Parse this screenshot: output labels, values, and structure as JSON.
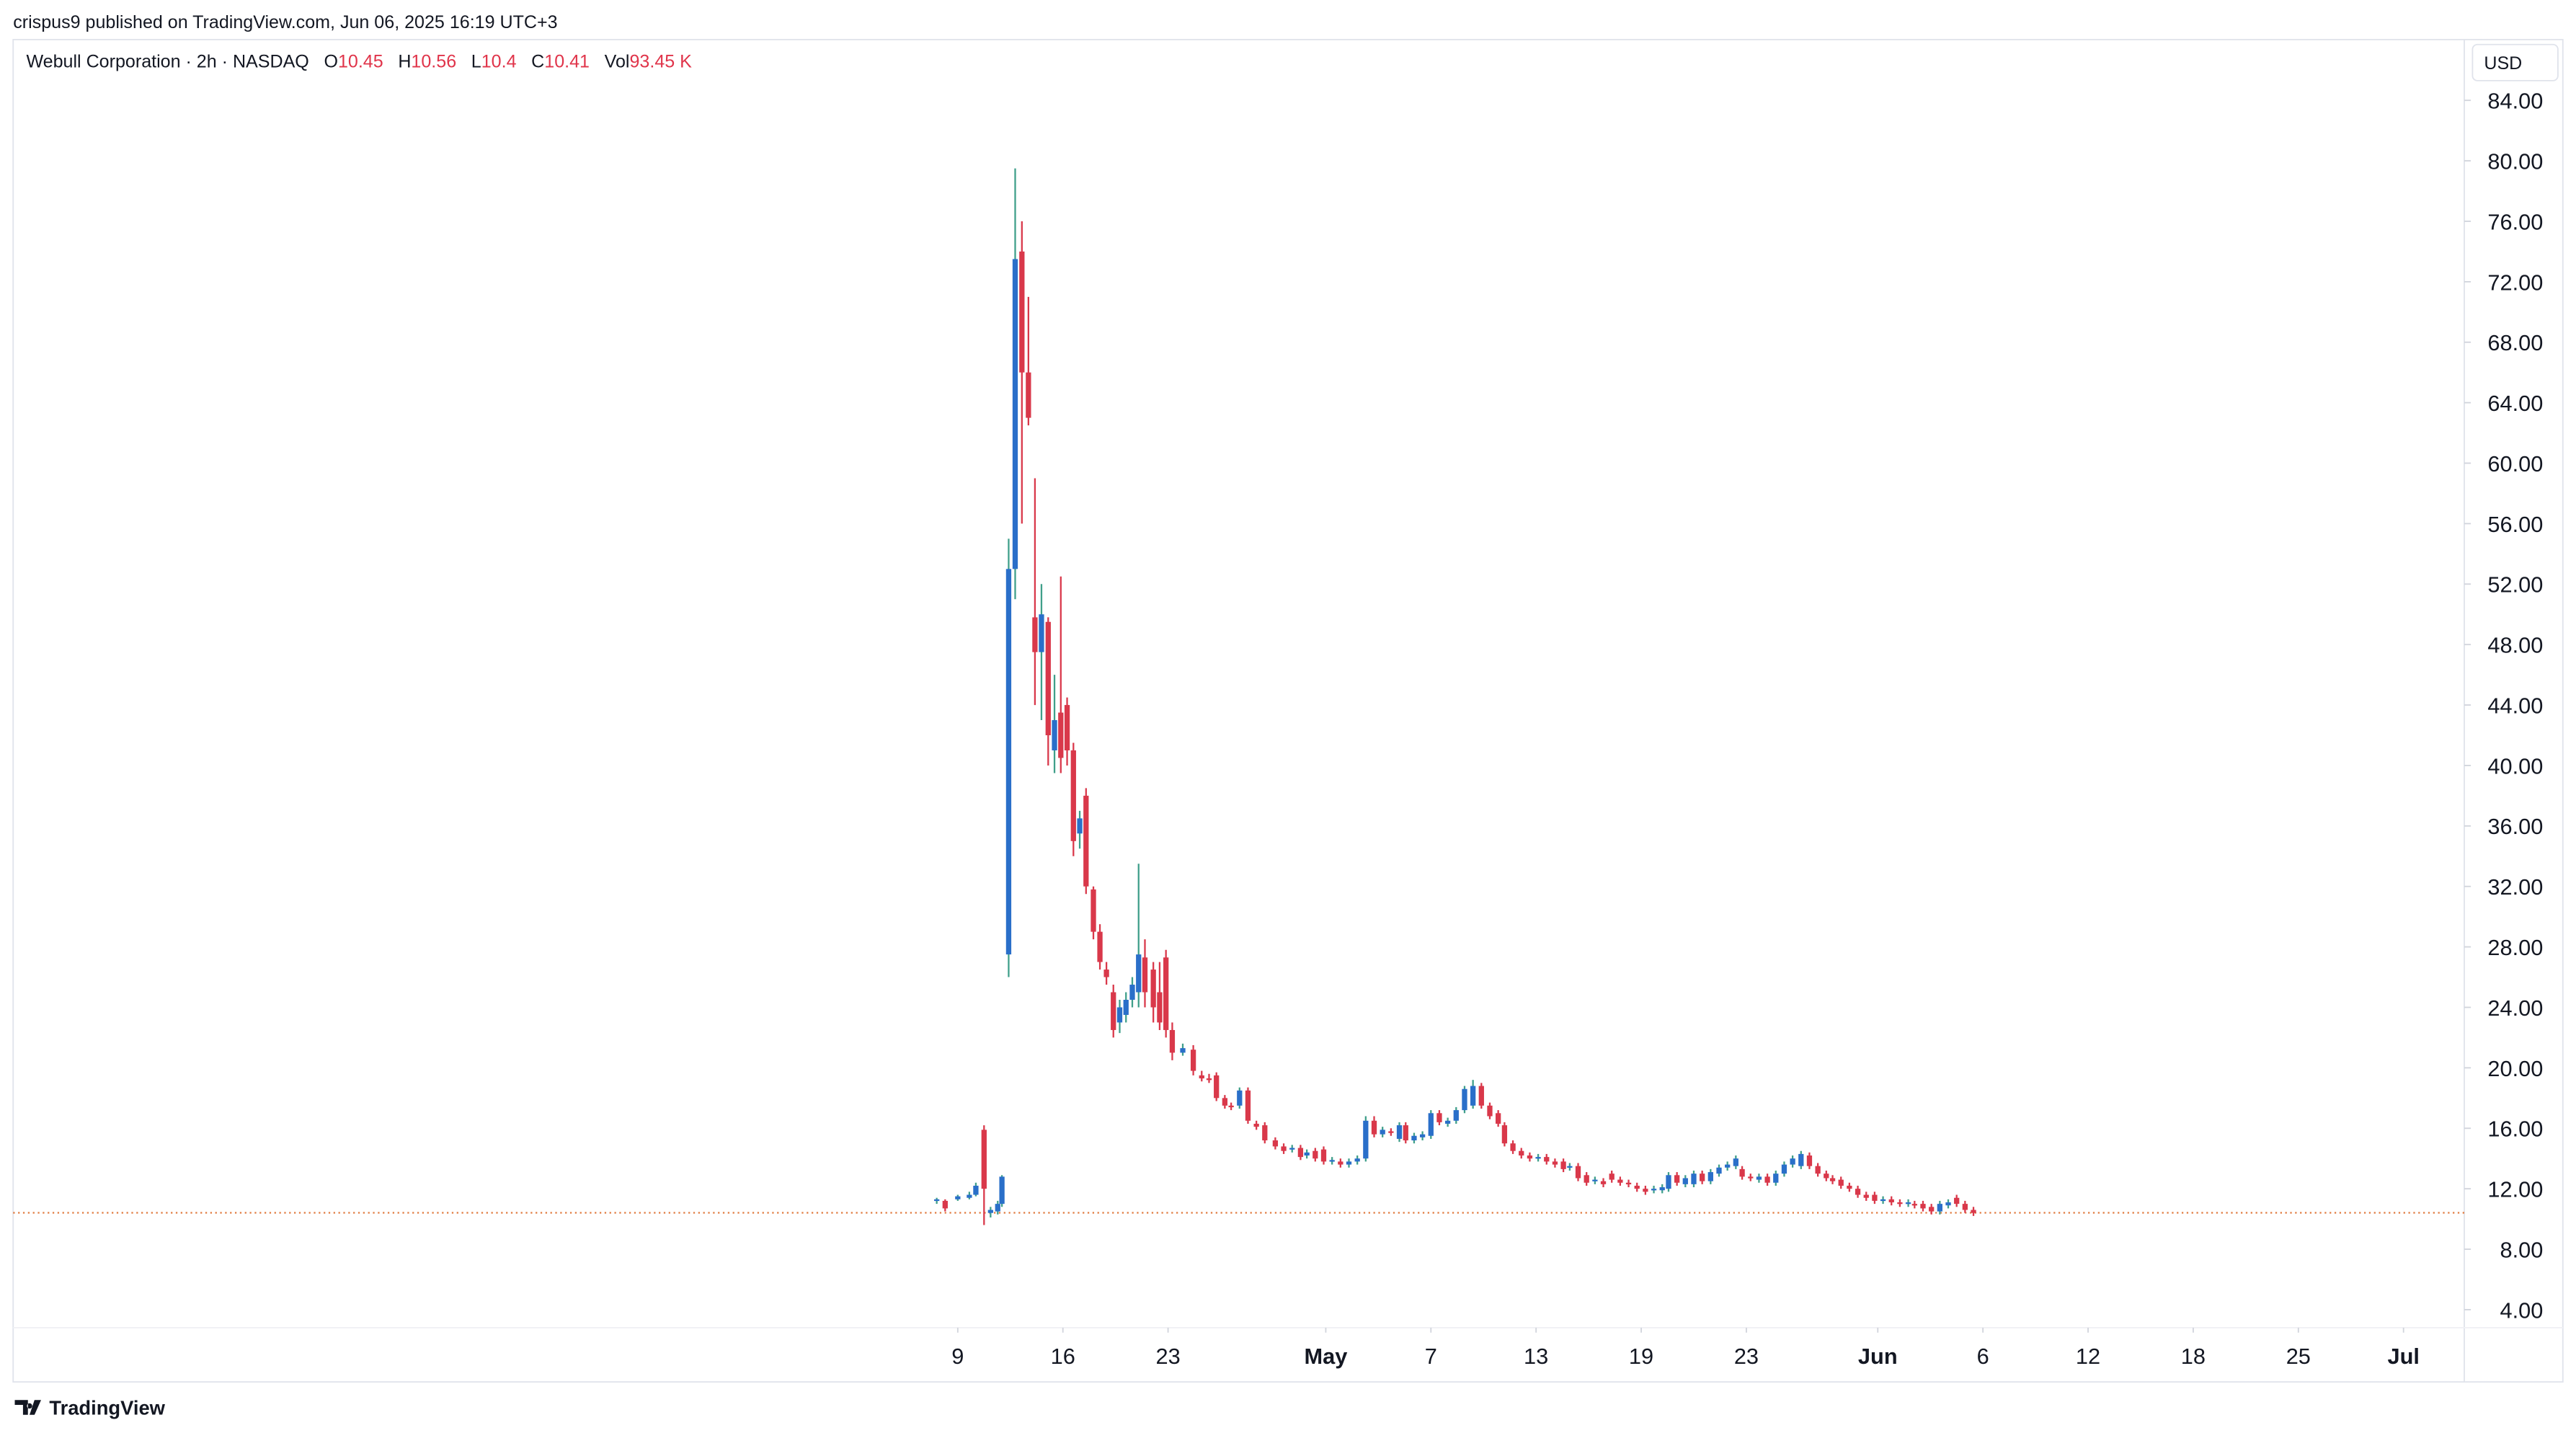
{
  "header": {
    "published": "crispus9 published on TradingView.com, Jun 06, 2025 16:19 UTC+3",
    "brand": "TradingView"
  },
  "chart_data": {
    "type": "candlestick",
    "title": "Webull Corporation · 2h · NASDAQ",
    "currency": "USD",
    "legend": {
      "open": {
        "label": "O",
        "value": 10.45
      },
      "high": {
        "label": "H",
        "value": 10.56
      },
      "low": {
        "label": "L",
        "value": 10.4
      },
      "close": {
        "label": "C",
        "value": 10.41
      },
      "volume": {
        "label": "Vol",
        "value": 93450,
        "value_label": "93.45 K"
      }
    },
    "up_color": "#2a6fc9",
    "up_wick": "#3f9f8a",
    "down_color": "#d9384a",
    "price_line_color": "#e07a3f",
    "xlim": [
      -44.92,
      71.64
    ],
    "ylim": [
      -0.67,
      88.02
    ],
    "xticks": [
      {
        "value": 0,
        "label": "9"
      },
      {
        "value": 5,
        "label": "16"
      },
      {
        "value": 10,
        "label": "23"
      },
      {
        "value": 17.5,
        "label": "May"
      },
      {
        "value": 22.5,
        "label": "7"
      },
      {
        "value": 27.5,
        "label": "13"
      },
      {
        "value": 32.5,
        "label": "19"
      },
      {
        "value": 37.5,
        "label": "23"
      },
      {
        "value": 43.75,
        "label": "Jun"
      },
      {
        "value": 48.75,
        "label": "6"
      },
      {
        "value": 53.75,
        "label": "12"
      },
      {
        "value": 58.75,
        "label": "18"
      },
      {
        "value": 63.75,
        "label": "25"
      },
      {
        "value": 68.75,
        "label": "Jul"
      }
    ],
    "yticks": [
      {
        "value": 4,
        "label": "4.00"
      },
      {
        "value": 8,
        "label": "8.00"
      },
      {
        "value": 12,
        "label": "12.00"
      },
      {
        "value": 16,
        "label": "16.00"
      },
      {
        "value": 20,
        "label": "20.00"
      },
      {
        "value": 24,
        "label": "24.00"
      },
      {
        "value": 28,
        "label": "28.00"
      },
      {
        "value": 32,
        "label": "32.00"
      },
      {
        "value": 36,
        "label": "36.00"
      },
      {
        "value": 40,
        "label": "40.00"
      },
      {
        "value": 44,
        "label": "44.00"
      },
      {
        "value": 48,
        "label": "48.00"
      },
      {
        "value": 52,
        "label": "52.00"
      },
      {
        "value": 56,
        "label": "56.00"
      },
      {
        "value": 60,
        "label": "60.00"
      },
      {
        "value": 64,
        "label": "64.00"
      },
      {
        "value": 68,
        "label": "68.00"
      },
      {
        "value": 72,
        "label": "72.00"
      },
      {
        "value": 76,
        "label": "76.00"
      },
      {
        "value": 80,
        "label": "80.00"
      },
      {
        "value": 84,
        "label": "84.00"
      }
    ],
    "candles": [
      {
        "x": -1.0,
        "open": 11.2,
        "high": 11.4,
        "low": 11.0,
        "close": 11.3
      },
      {
        "x": -0.6,
        "open": 11.2,
        "high": 11.3,
        "low": 10.5,
        "close": 10.7
      },
      {
        "x": 0,
        "open": 11.3,
        "high": 11.6,
        "low": 11.2,
        "close": 11.5
      },
      {
        "x": 0.55,
        "open": 11.4,
        "high": 11.8,
        "low": 11.3,
        "close": 11.6
      },
      {
        "x": 0.86,
        "open": 11.6,
        "high": 12.4,
        "low": 11.5,
        "close": 12.2
      },
      {
        "x": 1.25,
        "open": 15.9,
        "high": 16.2,
        "low": 9.6,
        "close": 12.0
      },
      {
        "x": 1.56,
        "open": 10.4,
        "high": 10.8,
        "low": 10.1,
        "close": 10.6
      },
      {
        "x": 1.9,
        "open": 10.5,
        "high": 11.2,
        "low": 10.3,
        "close": 11.0
      },
      {
        "x": 2.1,
        "open": 11.0,
        "high": 12.9,
        "low": 10.8,
        "close": 12.8
      },
      {
        "x": 2.42,
        "open": 27.5,
        "high": 55.0,
        "low": 26.0,
        "close": 53.0
      },
      {
        "x": 2.73,
        "open": 53.0,
        "high": 79.5,
        "low": 51.0,
        "close": 73.5
      },
      {
        "x": 3.05,
        "open": 74.0,
        "high": 76.0,
        "low": 56.0,
        "close": 66.0
      },
      {
        "x": 3.36,
        "open": 66.0,
        "high": 71.0,
        "low": 62.5,
        "close": 63.0
      },
      {
        "x": 3.67,
        "open": 49.8,
        "high": 59.0,
        "low": 44.0,
        "close": 47.5
      },
      {
        "x": 3.98,
        "open": 47.5,
        "high": 52.0,
        "low": 43.0,
        "close": 50.0
      },
      {
        "x": 4.3,
        "open": 49.5,
        "high": 49.8,
        "low": 40.0,
        "close": 42.0
      },
      {
        "x": 4.6,
        "open": 41.0,
        "high": 46.0,
        "low": 39.5,
        "close": 43.0
      },
      {
        "x": 4.9,
        "open": 43.5,
        "high": 52.5,
        "low": 39.5,
        "close": 40.5
      },
      {
        "x": 5.2,
        "open": 44.0,
        "high": 44.5,
        "low": 40.0,
        "close": 41.0
      },
      {
        "x": 5.5,
        "open": 41.0,
        "high": 41.5,
        "low": 34.0,
        "close": 35.0
      },
      {
        "x": 5.8,
        "open": 35.5,
        "high": 37.0,
        "low": 34.5,
        "close": 36.5
      },
      {
        "x": 6.1,
        "open": 38.0,
        "high": 38.5,
        "low": 31.5,
        "close": 32.0
      },
      {
        "x": 6.45,
        "open": 31.8,
        "high": 32.0,
        "low": 28.5,
        "close": 29.0
      },
      {
        "x": 6.76,
        "open": 29.0,
        "high": 29.5,
        "low": 26.5,
        "close": 27.0
      },
      {
        "x": 7.07,
        "open": 26.5,
        "high": 27.0,
        "low": 25.5,
        "close": 26.0
      },
      {
        "x": 7.4,
        "open": 25.0,
        "high": 25.5,
        "low": 22.0,
        "close": 22.5
      },
      {
        "x": 7.7,
        "open": 23.0,
        "high": 24.5,
        "low": 22.3,
        "close": 24.0
      },
      {
        "x": 8.0,
        "open": 23.5,
        "high": 25.0,
        "low": 23.0,
        "close": 24.5
      },
      {
        "x": 8.3,
        "open": 24.5,
        "high": 26.0,
        "low": 24.0,
        "close": 25.5
      },
      {
        "x": 8.6,
        "open": 25.0,
        "high": 33.5,
        "low": 24.0,
        "close": 27.5
      },
      {
        "x": 8.9,
        "open": 27.3,
        "high": 28.5,
        "low": 24.0,
        "close": 25.0
      },
      {
        "x": 9.3,
        "open": 26.5,
        "high": 27.0,
        "low": 23.0,
        "close": 24.0
      },
      {
        "x": 9.6,
        "open": 25.0,
        "high": 27.0,
        "low": 22.5,
        "close": 23.0
      },
      {
        "x": 9.9,
        "open": 27.3,
        "high": 27.8,
        "low": 22.0,
        "close": 22.5
      },
      {
        "x": 10.2,
        "open": 22.5,
        "high": 23.0,
        "low": 20.5,
        "close": 21.0
      },
      {
        "x": 10.7,
        "open": 21.0,
        "high": 21.6,
        "low": 20.8,
        "close": 21.3
      },
      {
        "x": 11.2,
        "open": 21.2,
        "high": 21.5,
        "low": 19.5,
        "close": 19.8
      },
      {
        "x": 11.6,
        "open": 19.5,
        "high": 19.8,
        "low": 19.1,
        "close": 19.3
      },
      {
        "x": 11.95,
        "open": 19.3,
        "high": 19.6,
        "low": 19.0,
        "close": 19.2
      },
      {
        "x": 12.3,
        "open": 19.5,
        "high": 19.7,
        "low": 17.8,
        "close": 18.0
      },
      {
        "x": 12.7,
        "open": 18.0,
        "high": 18.2,
        "low": 17.3,
        "close": 17.5
      },
      {
        "x": 13.0,
        "open": 17.5,
        "high": 17.7,
        "low": 17.2,
        "close": 17.4
      },
      {
        "x": 13.4,
        "open": 17.5,
        "high": 18.7,
        "low": 17.3,
        "close": 18.5
      },
      {
        "x": 13.8,
        "open": 18.5,
        "high": 18.7,
        "low": 16.3,
        "close": 16.5
      },
      {
        "x": 14.2,
        "open": 16.3,
        "high": 16.5,
        "low": 15.9,
        "close": 16.1
      },
      {
        "x": 14.6,
        "open": 16.2,
        "high": 16.4,
        "low": 15.0,
        "close": 15.2
      },
      {
        "x": 15.1,
        "open": 15.2,
        "high": 15.4,
        "low": 14.6,
        "close": 14.8
      },
      {
        "x": 15.5,
        "open": 14.8,
        "high": 15.0,
        "low": 14.3,
        "close": 14.5
      },
      {
        "x": 15.9,
        "open": 14.6,
        "high": 14.9,
        "low": 14.4,
        "close": 14.7
      },
      {
        "x": 16.3,
        "open": 14.7,
        "high": 14.9,
        "low": 13.9,
        "close": 14.1
      },
      {
        "x": 16.6,
        "open": 14.2,
        "high": 14.6,
        "low": 14.0,
        "close": 14.4
      },
      {
        "x": 17.0,
        "open": 14.5,
        "high": 14.7,
        "low": 13.8,
        "close": 14.0
      },
      {
        "x": 17.4,
        "open": 14.6,
        "high": 14.8,
        "low": 13.6,
        "close": 13.8
      },
      {
        "x": 17.8,
        "open": 13.8,
        "high": 14.1,
        "low": 13.6,
        "close": 13.9
      },
      {
        "x": 18.2,
        "open": 13.8,
        "high": 14.0,
        "low": 13.4,
        "close": 13.6
      },
      {
        "x": 18.6,
        "open": 13.6,
        "high": 14.0,
        "low": 13.4,
        "close": 13.8
      },
      {
        "x": 19.0,
        "open": 13.8,
        "high": 14.2,
        "low": 13.6,
        "close": 14.0
      },
      {
        "x": 19.4,
        "open": 14.0,
        "high": 16.8,
        "low": 13.8,
        "close": 16.5
      },
      {
        "x": 19.8,
        "open": 16.5,
        "high": 16.8,
        "low": 15.4,
        "close": 15.6
      },
      {
        "x": 20.2,
        "open": 15.6,
        "high": 16.1,
        "low": 15.4,
        "close": 15.9
      },
      {
        "x": 20.6,
        "open": 15.8,
        "high": 16.0,
        "low": 15.5,
        "close": 15.7
      },
      {
        "x": 21.0,
        "open": 15.3,
        "high": 16.4,
        "low": 15.1,
        "close": 16.2
      },
      {
        "x": 21.3,
        "open": 16.2,
        "high": 16.4,
        "low": 15.0,
        "close": 15.2
      },
      {
        "x": 21.7,
        "open": 15.2,
        "high": 15.7,
        "low": 15.0,
        "close": 15.5
      },
      {
        "x": 22.1,
        "open": 15.4,
        "high": 15.8,
        "low": 15.2,
        "close": 15.6
      },
      {
        "x": 22.5,
        "open": 15.5,
        "high": 17.2,
        "low": 15.3,
        "close": 17.0
      },
      {
        "x": 22.9,
        "open": 17.0,
        "high": 17.2,
        "low": 16.2,
        "close": 16.4
      },
      {
        "x": 23.3,
        "open": 16.3,
        "high": 16.7,
        "low": 16.1,
        "close": 16.5
      },
      {
        "x": 23.7,
        "open": 16.5,
        "high": 17.4,
        "low": 16.3,
        "close": 17.2
      },
      {
        "x": 24.1,
        "open": 17.2,
        "high": 18.8,
        "low": 17.0,
        "close": 18.6
      },
      {
        "x": 24.5,
        "open": 17.5,
        "high": 19.2,
        "low": 17.3,
        "close": 18.8
      },
      {
        "x": 24.9,
        "open": 18.8,
        "high": 19.0,
        "low": 17.3,
        "close": 17.5
      },
      {
        "x": 25.3,
        "open": 17.5,
        "high": 17.7,
        "low": 16.6,
        "close": 16.8
      },
      {
        "x": 25.7,
        "open": 17.0,
        "high": 17.2,
        "low": 16.1,
        "close": 16.3
      },
      {
        "x": 26.0,
        "open": 16.2,
        "high": 16.4,
        "low": 14.8,
        "close": 15.0
      },
      {
        "x": 26.4,
        "open": 15.0,
        "high": 15.2,
        "low": 14.3,
        "close": 14.5
      },
      {
        "x": 26.8,
        "open": 14.5,
        "high": 14.7,
        "low": 14.0,
        "close": 14.2
      },
      {
        "x": 27.2,
        "open": 14.2,
        "high": 14.4,
        "low": 13.8,
        "close": 14.0
      },
      {
        "x": 27.6,
        "open": 14.0,
        "high": 14.3,
        "low": 13.8,
        "close": 14.1
      },
      {
        "x": 28.0,
        "open": 14.1,
        "high": 14.3,
        "low": 13.6,
        "close": 13.8
      },
      {
        "x": 28.4,
        "open": 13.8,
        "high": 14.0,
        "low": 13.4,
        "close": 13.6
      },
      {
        "x": 28.8,
        "open": 13.8,
        "high": 14.0,
        "low": 13.1,
        "close": 13.3
      },
      {
        "x": 29.1,
        "open": 13.4,
        "high": 13.7,
        "low": 13.2,
        "close": 13.5
      },
      {
        "x": 29.5,
        "open": 13.5,
        "high": 13.7,
        "low": 12.5,
        "close": 12.7
      },
      {
        "x": 29.9,
        "open": 12.9,
        "high": 13.1,
        "low": 12.2,
        "close": 12.4
      },
      {
        "x": 30.3,
        "open": 12.5,
        "high": 12.8,
        "low": 12.3,
        "close": 12.6
      },
      {
        "x": 30.7,
        "open": 12.5,
        "high": 12.7,
        "low": 12.1,
        "close": 12.3
      },
      {
        "x": 31.1,
        "open": 13.0,
        "high": 13.2,
        "low": 12.4,
        "close": 12.6
      },
      {
        "x": 31.5,
        "open": 12.6,
        "high": 12.8,
        "low": 12.2,
        "close": 12.4
      },
      {
        "x": 31.9,
        "open": 12.4,
        "high": 12.6,
        "low": 12.1,
        "close": 12.3
      },
      {
        "x": 32.3,
        "open": 12.2,
        "high": 12.4,
        "low": 11.8,
        "close": 12.0
      },
      {
        "x": 32.7,
        "open": 12.0,
        "high": 12.2,
        "low": 11.6,
        "close": 11.8
      },
      {
        "x": 33.1,
        "open": 11.9,
        "high": 12.2,
        "low": 11.7,
        "close": 12.0
      },
      {
        "x": 33.5,
        "open": 11.9,
        "high": 12.3,
        "low": 11.7,
        "close": 12.1
      },
      {
        "x": 33.8,
        "open": 12.0,
        "high": 13.1,
        "low": 11.8,
        "close": 12.9
      },
      {
        "x": 34.2,
        "open": 12.9,
        "high": 13.1,
        "low": 12.2,
        "close": 12.4
      },
      {
        "x": 34.6,
        "open": 12.3,
        "high": 12.9,
        "low": 12.1,
        "close": 12.7
      },
      {
        "x": 35.0,
        "open": 12.3,
        "high": 13.2,
        "low": 12.1,
        "close": 13.0
      },
      {
        "x": 35.4,
        "open": 13.0,
        "high": 13.2,
        "low": 12.3,
        "close": 12.5
      },
      {
        "x": 35.8,
        "open": 12.5,
        "high": 13.3,
        "low": 12.3,
        "close": 13.1
      },
      {
        "x": 36.2,
        "open": 13.0,
        "high": 13.6,
        "low": 12.8,
        "close": 13.4
      },
      {
        "x": 36.6,
        "open": 13.4,
        "high": 13.8,
        "low": 13.2,
        "close": 13.6
      },
      {
        "x": 37.0,
        "open": 13.5,
        "high": 14.2,
        "low": 13.3,
        "close": 14.0
      },
      {
        "x": 37.3,
        "open": 13.3,
        "high": 13.5,
        "low": 12.6,
        "close": 12.8
      },
      {
        "x": 37.7,
        "open": 12.8,
        "high": 13.0,
        "low": 12.5,
        "close": 12.7
      },
      {
        "x": 38.1,
        "open": 12.6,
        "high": 13.0,
        "low": 12.4,
        "close": 12.8
      },
      {
        "x": 38.5,
        "open": 12.8,
        "high": 13.0,
        "low": 12.2,
        "close": 12.4
      },
      {
        "x": 38.9,
        "open": 12.4,
        "high": 13.2,
        "low": 12.2,
        "close": 13.0
      },
      {
        "x": 39.3,
        "open": 13.0,
        "high": 13.8,
        "low": 12.8,
        "close": 13.6
      },
      {
        "x": 39.7,
        "open": 13.6,
        "high": 14.2,
        "low": 13.4,
        "close": 14.0
      },
      {
        "x": 40.1,
        "open": 13.5,
        "high": 14.5,
        "low": 13.3,
        "close": 14.3
      },
      {
        "x": 40.5,
        "open": 14.2,
        "high": 14.4,
        "low": 13.3,
        "close": 13.5
      },
      {
        "x": 40.9,
        "open": 13.5,
        "high": 13.7,
        "low": 12.8,
        "close": 13.0
      },
      {
        "x": 41.3,
        "open": 13.0,
        "high": 13.2,
        "low": 12.5,
        "close": 12.7
      },
      {
        "x": 41.6,
        "open": 12.7,
        "high": 12.9,
        "low": 12.3,
        "close": 12.5
      },
      {
        "x": 42.0,
        "open": 12.6,
        "high": 12.8,
        "low": 12.0,
        "close": 12.2
      },
      {
        "x": 42.4,
        "open": 12.2,
        "high": 12.4,
        "low": 11.8,
        "close": 12.0
      },
      {
        "x": 42.8,
        "open": 12.0,
        "high": 12.2,
        "low": 11.4,
        "close": 11.6
      },
      {
        "x": 43.2,
        "open": 11.6,
        "high": 11.8,
        "low": 11.2,
        "close": 11.4
      },
      {
        "x": 43.6,
        "open": 11.6,
        "high": 11.8,
        "low": 11.0,
        "close": 11.2
      },
      {
        "x": 44.0,
        "open": 11.2,
        "high": 11.5,
        "low": 11.0,
        "close": 11.3
      },
      {
        "x": 44.4,
        "open": 11.3,
        "high": 11.5,
        "low": 10.9,
        "close": 11.1
      },
      {
        "x": 44.8,
        "open": 11.1,
        "high": 11.3,
        "low": 10.8,
        "close": 11.0
      },
      {
        "x": 45.2,
        "open": 11.0,
        "high": 11.3,
        "low": 10.8,
        "close": 11.1
      },
      {
        "x": 45.5,
        "open": 11.0,
        "high": 11.2,
        "low": 10.7,
        "close": 10.9
      },
      {
        "x": 45.9,
        "open": 11.0,
        "high": 11.2,
        "low": 10.5,
        "close": 10.7
      },
      {
        "x": 46.3,
        "open": 10.8,
        "high": 11.0,
        "low": 10.3,
        "close": 10.5
      },
      {
        "x": 46.7,
        "open": 10.5,
        "high": 11.2,
        "low": 10.3,
        "close": 11.0
      },
      {
        "x": 47.1,
        "open": 10.9,
        "high": 11.3,
        "low": 10.7,
        "close": 11.1
      },
      {
        "x": 47.5,
        "open": 11.4,
        "high": 11.6,
        "low": 10.8,
        "close": 11.0
      },
      {
        "x": 47.9,
        "open": 11.0,
        "high": 11.2,
        "low": 10.4,
        "close": 10.6
      },
      {
        "x": 48.3,
        "open": 10.6,
        "high": 10.8,
        "low": 10.2,
        "close": 10.4
      }
    ]
  }
}
